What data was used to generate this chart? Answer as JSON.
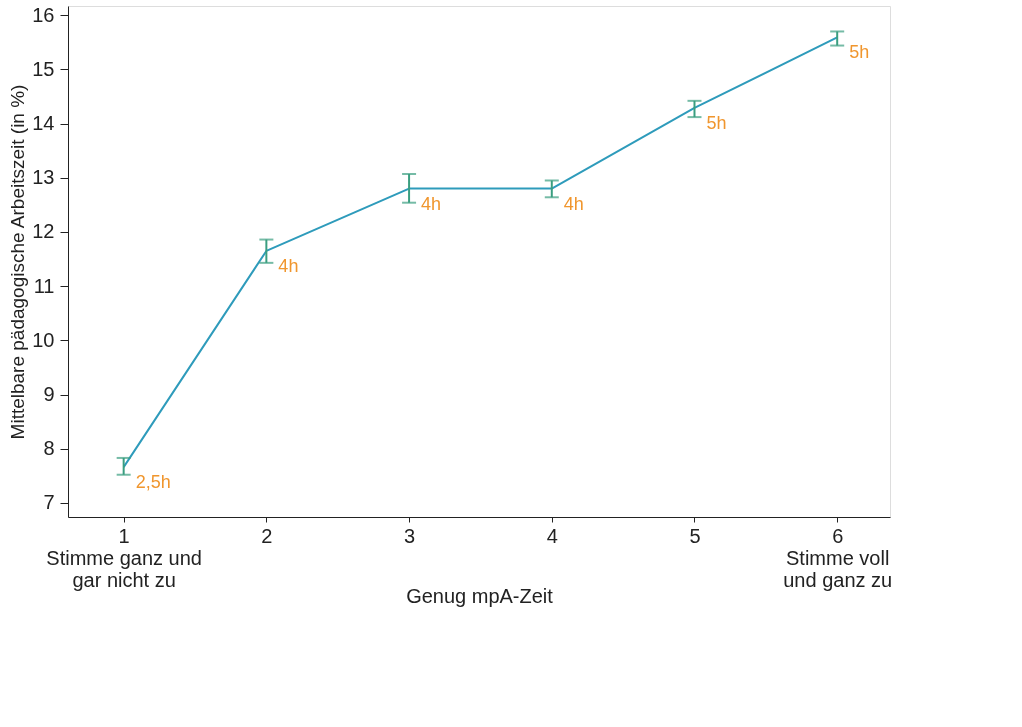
{
  "chart_data": {
    "type": "line",
    "xlabel": "Genug mpA-Zeit",
    "ylabel": "Mittelbare pädagogische Arbeitszeit (in %)",
    "x": [
      1,
      2,
      3,
      4,
      5,
      6
    ],
    "series": [
      {
        "color": "#2e9bbb",
        "values": [
          7.66,
          11.65,
          12.8,
          12.8,
          14.29,
          15.59
        ],
        "errors": [
          [
            7.52,
            7.83
          ],
          [
            11.43,
            11.86
          ],
          [
            12.54,
            13.07
          ],
          [
            12.64,
            12.95
          ],
          [
            14.12,
            14.42
          ],
          [
            15.44,
            15.7
          ]
        ],
        "line_style": "solid"
      }
    ],
    "annotations": [
      {
        "text": "2,5h",
        "x": 1,
        "y": 7.66
      },
      {
        "text": "4h",
        "x": 2,
        "y": 11.65
      },
      {
        "text": "4h",
        "x": 3,
        "y": 12.8
      },
      {
        "text": "4h",
        "x": 4,
        "y": 12.8
      },
      {
        "text": "5h",
        "x": 5,
        "y": 14.29
      },
      {
        "text": "5h",
        "x": 6,
        "y": 15.59
      }
    ],
    "xlim": [
      0.61,
      6.37
    ],
    "xticks": [
      {
        "value": 1,
        "label": "1\nStimme ganz und\ngar nicht zu"
      },
      2,
      3,
      4,
      5,
      {
        "value": 6,
        "label": "6\nStimme voll\nund ganz zu"
      }
    ],
    "ylim": [
      6.74,
      16.17
    ],
    "yticks": [
      7,
      8,
      9,
      10,
      11,
      12,
      13,
      14,
      15,
      16
    ],
    "grid": false,
    "marker": "none"
  }
}
